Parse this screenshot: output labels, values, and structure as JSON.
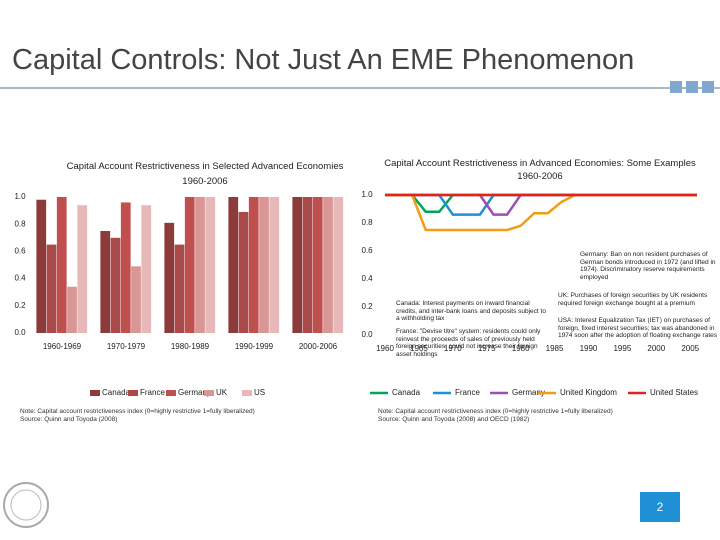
{
  "slide_title": "Capital Controls: Not Just An EME Phenomenon",
  "page_number": "2",
  "chart_data": [
    {
      "type": "bar",
      "title": "Capital Account Restrictiveness in Selected Advanced Economies",
      "subtitle": "1960-2006",
      "categories": [
        "1960-1969",
        "1970-1979",
        "1980-1989",
        "1990-1999",
        "2000-2006"
      ],
      "series": [
        {
          "name": "Canada",
          "color": "#8c3b3a",
          "values": [
            0.98,
            0.75,
            0.81,
            1.0,
            1.0
          ]
        },
        {
          "name": "France",
          "color": "#a94a48",
          "values": [
            0.65,
            0.7,
            0.65,
            0.89,
            1.0
          ]
        },
        {
          "name": "Germany",
          "color": "#c0504d",
          "values": [
            1.0,
            0.96,
            1.0,
            1.0,
            1.0
          ]
        },
        {
          "name": "UK",
          "color": "#d99694",
          "values": [
            0.34,
            0.49,
            1.0,
            1.0,
            1.0
          ]
        },
        {
          "name": "US",
          "color": "#e6b9b8",
          "values": [
            0.94,
            0.94,
            1.0,
            1.0,
            1.0
          ]
        }
      ],
      "ylim": [
        0,
        1
      ],
      "yticks": [
        {
          "value": 0,
          "label": "0.0"
        },
        0.2,
        0.4,
        0.6,
        0.8,
        {
          "value": 1,
          "label": "1.0"
        }
      ],
      "notes": [
        "Note: Capital account restrictiveness index (0=highly restrictive 1=fully liberalized)",
        "Source: Quinn and Toyoda (2008)"
      ]
    },
    {
      "type": "line",
      "title": "Capital Account Restrictiveness in Advanced Economies: Some Examples",
      "subtitle": "1960-2006",
      "x": [
        1960,
        1962,
        1964,
        1966,
        1968,
        1970,
        1972,
        1974,
        1976,
        1978,
        1980,
        1982,
        1984,
        1986,
        1988,
        1990,
        1992,
        1994,
        1996,
        1998,
        2000,
        2002,
        2004,
        2006
      ],
      "series": [
        {
          "name": "Canada",
          "color": "#00a651",
          "values": [
            1,
            1,
            1,
            0.88,
            0.88,
            1,
            1,
            1,
            1,
            1,
            1,
            1,
            1,
            1,
            1,
            1,
            1,
            1,
            1,
            1,
            1,
            1,
            1,
            1
          ]
        },
        {
          "name": "France",
          "color": "#1f8fd6",
          "values": [
            1,
            1,
            1,
            1,
            1,
            0.86,
            0.86,
            0.86,
            1,
            1,
            1,
            1,
            1,
            1,
            1,
            1,
            1,
            1,
            1,
            1,
            1,
            1,
            1,
            1
          ]
        },
        {
          "name": "Germany",
          "color": "#9b4fb4",
          "values": [
            1,
            1,
            1,
            1,
            1,
            1,
            1,
            1,
            0.86,
            0.86,
            1,
            1,
            1,
            1,
            1,
            1,
            1,
            1,
            1,
            1,
            1,
            1,
            1,
            1
          ]
        },
        {
          "name": "United Kingdom",
          "color": "#f39c12",
          "values": [
            1,
            1,
            1,
            0.75,
            0.75,
            0.75,
            0.75,
            0.75,
            0.75,
            0.75,
            0.78,
            0.87,
            0.87,
            0.95,
            1,
            1,
            1,
            1,
            1,
            1,
            1,
            1,
            1,
            1
          ]
        },
        {
          "name": "United States",
          "color": "#e2231a",
          "values": [
            1,
            1,
            1,
            1,
            1,
            1,
            1,
            1,
            1,
            1,
            1,
            1,
            1,
            1,
            1,
            1,
            1,
            1,
            1,
            1,
            1,
            1,
            1,
            1
          ]
        }
      ],
      "xlim": [
        1960,
        2006
      ],
      "xticks": [
        1960,
        1965,
        1970,
        1975,
        1980,
        1985,
        1990,
        1995,
        2000,
        2005
      ],
      "ylim": [
        0,
        1
      ],
      "yticks": [
        {
          "value": 0,
          "label": "0.0"
        },
        0.2,
        0.4,
        0.6,
        0.8,
        {
          "value": 1,
          "label": "1.0"
        }
      ],
      "annotations": [
        "Germany: Ban on non resident purchases of German bonds introduced in 1972 (and lifted in 1974). Discriminatory reserve requirements employed",
        "UK: Purchases of foreign securities by UK residents required foreign exchange bought at a premium",
        "USA: Interest Equalization Tax (IET) on purchases of foreign, fixed interest securities; tax was abandoned in 1974 soon after the adoption of floating exchange rates",
        "Canada: Interest payments on inward financial credits, and inter-bank loans and deposits subject to a withholding tax",
        "France: \"Devise titre\" system: residents could only reinvest the proceeds of sales of previously held foreign securities; could not increase their foreign asset holdings"
      ],
      "notes": [
        "Note: Capital account restrictiveness index (0=highly restrictive 1=fully liberalized)",
        "Source: Quinn and Toyoda (2008) and OECD (1982)"
      ]
    }
  ]
}
